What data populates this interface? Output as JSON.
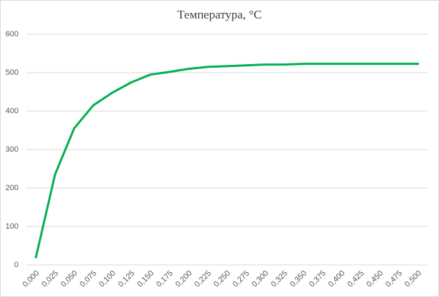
{
  "chart_data": {
    "type": "line",
    "title": "Температура, °C",
    "categories": [
      "0,000",
      "0,025",
      "0,050",
      "0,075",
      "0,100",
      "0,125",
      "0,150",
      "0,175",
      "0,200",
      "0,225",
      "0,250",
      "0,275",
      "0,300",
      "0,325",
      "0,350",
      "0,375",
      "0,400",
      "0,425",
      "0,450",
      "0,475",
      "0,500"
    ],
    "series": [
      {
        "name": "Температура, °C",
        "color": "#00b050",
        "values": [
          20,
          235,
          355,
          415,
          448,
          475,
          495,
          502,
          510,
          515,
          517,
          519,
          521,
          521,
          523,
          523,
          523,
          523,
          523,
          523,
          523
        ]
      }
    ],
    "ylim": [
      0,
      600
    ],
    "yticks": [
      0,
      100,
      200,
      300,
      400,
      500,
      600
    ],
    "grid": true
  }
}
